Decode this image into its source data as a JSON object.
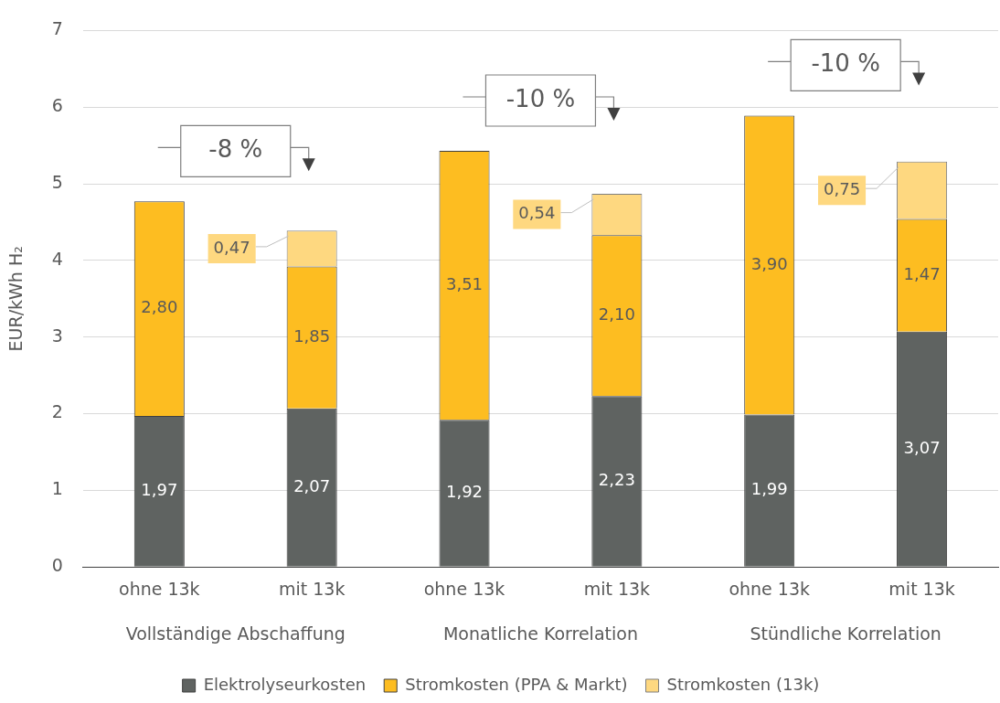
{
  "chart_data": {
    "type": "bar",
    "stacked": true,
    "ylabel": "EUR/kWh H₂",
    "categories": [
      "ohne 13k",
      "mit 13k",
      "ohne 13k",
      "mit 13k",
      "ohne 13k",
      "mit 13k"
    ],
    "series": [
      {
        "name": "Elektrolyseurkosten",
        "color": "#5f6361",
        "values": [
          1.97,
          2.07,
          1.92,
          2.23,
          1.99,
          3.07
        ],
        "value_labels": [
          "1,97",
          "2,07",
          "1,92",
          "2,23",
          "1,99",
          "3,07"
        ]
      },
      {
        "name": "Stromkosten (PPA & Markt)",
        "color": "#fdbd21",
        "values": [
          2.8,
          1.85,
          3.51,
          2.1,
          3.9,
          1.47
        ],
        "value_labels": [
          "2,80",
          "1,85",
          "3,51",
          "2,10",
          "3,90",
          "1,47"
        ]
      },
      {
        "name": "Stromkosten (13k)",
        "color": "#fed880",
        "values": [
          null,
          0.47,
          null,
          0.54,
          null,
          0.75
        ],
        "value_labels": [
          null,
          "0,47",
          null,
          "0,54",
          null,
          "0,75"
        ]
      }
    ],
    "ylim": [
      0,
      7
    ],
    "yticks": [
      0,
      1,
      2,
      3,
      4,
      5,
      6,
      7
    ],
    "grid": "y",
    "legend": "bottom",
    "annotations": [
      "-8 %",
      "-10 %",
      "-10 %",
      "Vollständige Abschaffung",
      "Monatliche Korrelation",
      "Stündliche Korrelation"
    ]
  }
}
